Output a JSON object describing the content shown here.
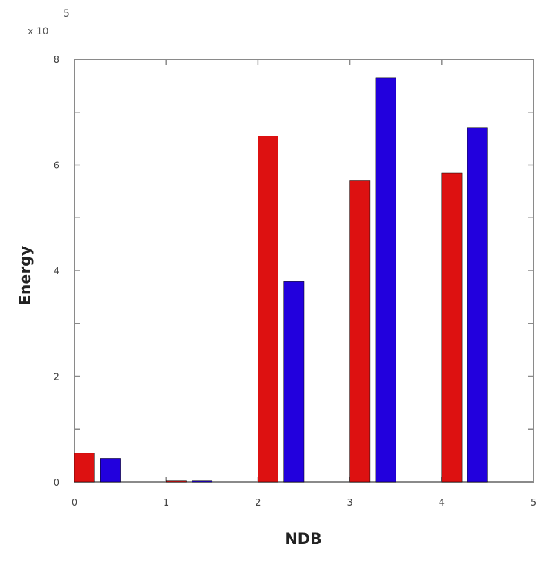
{
  "chart_data": {
    "type": "bar",
    "title": "",
    "xlabel": "NDB",
    "ylabel": "Energy",
    "y_exponent_label": "x 10",
    "y_exponent": "5",
    "xlim": [
      0,
      5
    ],
    "ylim": [
      0,
      8
    ],
    "xticks": [
      0,
      1,
      2,
      3,
      4,
      5
    ],
    "xtick_labels": [
      "0",
      "1",
      "2",
      "3",
      "4",
      "5"
    ],
    "yticks": [
      0,
      2,
      4,
      6,
      8
    ],
    "ytick_labels": [
      "0",
      "2",
      "4",
      "6",
      "8"
    ],
    "grid": false,
    "legend": "none",
    "categories": [
      0,
      1,
      2,
      3,
      4
    ],
    "series": [
      {
        "color": "#dd1111",
        "values": [
          0.55,
          0.03,
          6.55,
          5.7,
          5.85
        ]
      },
      {
        "color": "#2200dd",
        "values": [
          0.45,
          0.03,
          3.8,
          7.65,
          6.7
        ]
      }
    ]
  }
}
